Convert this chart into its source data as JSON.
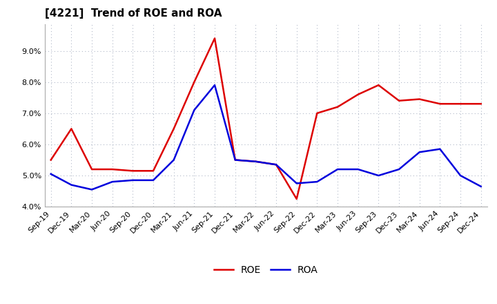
{
  "title": "[4221]  Trend of ROE and ROA",
  "labels": [
    "Sep-19",
    "Dec-19",
    "Mar-20",
    "Jun-20",
    "Sep-20",
    "Dec-20",
    "Mar-21",
    "Jun-21",
    "Sep-21",
    "Dec-21",
    "Mar-22",
    "Jun-22",
    "Sep-22",
    "Dec-22",
    "Mar-23",
    "Jun-23",
    "Sep-23",
    "Dec-23",
    "Mar-24",
    "Jun-24",
    "Sep-24",
    "Dec-24"
  ],
  "ROE": [
    5.5,
    6.5,
    5.2,
    5.2,
    5.15,
    5.15,
    6.5,
    8.0,
    9.4,
    5.5,
    5.45,
    5.35,
    4.25,
    7.0,
    7.2,
    7.6,
    7.9,
    7.4,
    7.45,
    7.3,
    7.3,
    7.3
  ],
  "ROA": [
    5.05,
    4.7,
    4.55,
    4.8,
    4.85,
    4.85,
    5.5,
    7.1,
    7.9,
    5.5,
    5.45,
    5.35,
    4.75,
    4.8,
    5.2,
    5.2,
    5.0,
    5.2,
    5.75,
    5.85,
    5.0,
    4.65
  ],
  "roe_color": "#dd0000",
  "roa_color": "#0000dd",
  "ylim_min": 4.0,
  "ylim_max": 9.85,
  "yticks": [
    4.0,
    5.0,
    6.0,
    7.0,
    8.0,
    9.0
  ],
  "plot_bg": "#ffffff",
  "fig_bg": "#ffffff",
  "grid_color": "#b0b8c8",
  "title_fontsize": 11,
  "legend_fontsize": 10,
  "tick_fontsize": 8,
  "line_width": 1.8
}
